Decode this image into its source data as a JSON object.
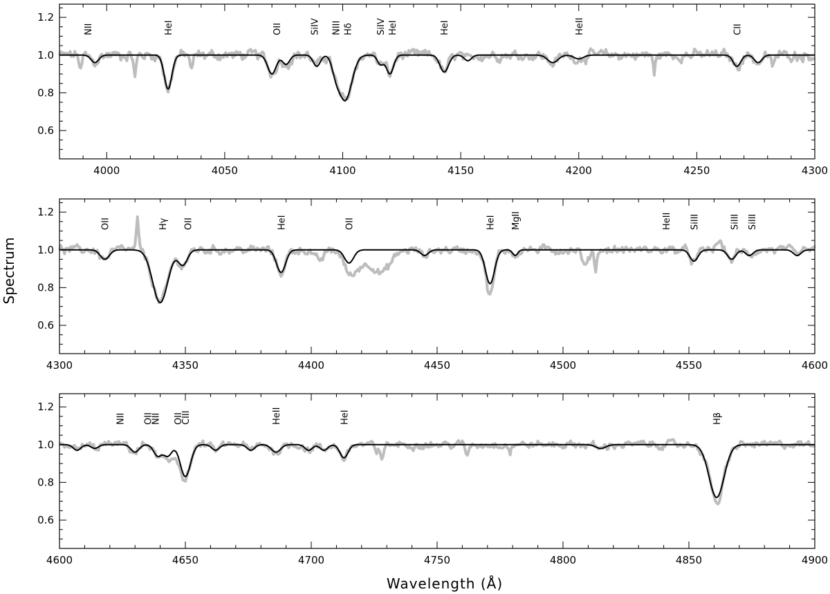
{
  "chart_data": {
    "type": "line",
    "ylabel": "Spectrum",
    "xlabel": "Wavelength (Å)",
    "ylim": [
      0.45,
      1.27
    ],
    "yticks": [
      "0.6",
      "0.8",
      "1.0",
      "1.2"
    ],
    "grid": false,
    "colors": {
      "observed": "#bdbdbd",
      "model": "#000000"
    },
    "panels": [
      {
        "xlim": [
          3980,
          4300
        ],
        "xticks": [
          "4000",
          "4050",
          "4100",
          "4150",
          "4200",
          "4250",
          "4300"
        ],
        "continuum_noise": 0.025,
        "lines": [
          {
            "wl": 3995,
            "depth": 0.04,
            "width": 1.6
          },
          {
            "wl": 4026,
            "depth": 0.18,
            "width": 1.6
          },
          {
            "wl": 4070,
            "depth": 0.1,
            "width": 1.8
          },
          {
            "wl": 4076,
            "depth": 0.05,
            "width": 1.5
          },
          {
            "wl": 4089,
            "depth": 0.06,
            "width": 1.5
          },
          {
            "wl": 4097,
            "depth": 0.06,
            "width": 1.5
          },
          {
            "wl": 4101,
            "depth": 0.24,
            "width": 2.8
          },
          {
            "wl": 4116,
            "depth": 0.05,
            "width": 1.3
          },
          {
            "wl": 4120,
            "depth": 0.1,
            "width": 1.5
          },
          {
            "wl": 4143,
            "depth": 0.09,
            "width": 1.8
          },
          {
            "wl": 4153,
            "depth": 0.03,
            "width": 1.5
          },
          {
            "wl": 4189,
            "depth": 0.04,
            "width": 2.2
          },
          {
            "wl": 4200,
            "depth": 0.02,
            "width": 2.0
          },
          {
            "wl": 4267,
            "depth": 0.06,
            "width": 1.6
          },
          {
            "wl": 4276,
            "depth": 0.04,
            "width": 1.6
          }
        ],
        "extra_dips": [
          {
            "wl": 3989,
            "depth": 0.08,
            "width": 0.6
          },
          {
            "wl": 4012,
            "depth": 0.12,
            "width": 0.5
          },
          {
            "wl": 4036,
            "depth": 0.08,
            "width": 0.6
          },
          {
            "wl": 4232,
            "depth": 0.12,
            "width": 0.4
          },
          {
            "wl": 4282,
            "depth": 0.06,
            "width": 0.8
          }
        ],
        "labels": [
          {
            "text": "NII",
            "wl": 3992
          },
          {
            "text": "HeI",
            "wl": 4026
          },
          {
            "text": "OII",
            "wl": 4072
          },
          {
            "text": "SiIV",
            "wl": 4088
          },
          {
            "text": "NIII",
            "wl": 4097
          },
          {
            "text": "Hδ",
            "wl": 4102
          },
          {
            "text": "SiIV",
            "wl": 4116
          },
          {
            "text": "HeI",
            "wl": 4121
          },
          {
            "text": "HeI",
            "wl": 4143
          },
          {
            "text": "HeII",
            "wl": 4200
          },
          {
            "text": "CII",
            "wl": 4267
          }
        ]
      },
      {
        "xlim": [
          4300,
          4600
        ],
        "xticks": [
          "4300",
          "4350",
          "4400",
          "4450",
          "4500",
          "4550",
          "4600"
        ],
        "continuum_noise": 0.02,
        "lines": [
          {
            "wl": 4318,
            "depth": 0.05,
            "width": 1.8
          },
          {
            "wl": 4340,
            "depth": 0.28,
            "width": 3.0
          },
          {
            "wl": 4349,
            "depth": 0.08,
            "width": 1.8
          },
          {
            "wl": 4388,
            "depth": 0.12,
            "width": 1.8
          },
          {
            "wl": 4415,
            "depth": 0.07,
            "width": 1.8
          },
          {
            "wl": 4445,
            "depth": 0.03,
            "width": 1.5
          },
          {
            "wl": 4471,
            "depth": 0.18,
            "width": 1.8
          },
          {
            "wl": 4481,
            "depth": 0.03,
            "width": 1.0
          },
          {
            "wl": 4552,
            "depth": 0.06,
            "width": 1.6
          },
          {
            "wl": 4567,
            "depth": 0.05,
            "width": 1.6
          },
          {
            "wl": 4574,
            "depth": 0.03,
            "width": 1.5
          },
          {
            "wl": 4593,
            "depth": 0.03,
            "width": 1.5
          }
        ],
        "extra_dips": [
          {
            "wl": 4331,
            "depth": -0.18,
            "width": 0.4
          },
          {
            "wl": 4403,
            "depth": 0.06,
            "width": 1.8
          },
          {
            "wl": 4418,
            "depth": 0.09,
            "width": 3.5
          },
          {
            "wl": 4428,
            "depth": 0.12,
            "width": 3.5
          },
          {
            "wl": 4471,
            "depth": 0.06,
            "width": 1.2
          },
          {
            "wl": 4509,
            "depth": 0.09,
            "width": 1.2
          },
          {
            "wl": 4513,
            "depth": 0.1,
            "width": 0.5
          },
          {
            "wl": 4562,
            "depth": -0.04,
            "width": 1.2
          }
        ],
        "labels": [
          {
            "text": "OII",
            "wl": 4318
          },
          {
            "text": "Hγ",
            "wl": 4341
          },
          {
            "text": "OII",
            "wl": 4351
          },
          {
            "text": "HeI",
            "wl": 4388
          },
          {
            "text": "OII",
            "wl": 4415
          },
          {
            "text": "HeI",
            "wl": 4471
          },
          {
            "text": "MgII",
            "wl": 4481
          },
          {
            "text": "HeII",
            "wl": 4541
          },
          {
            "text": "SiIII",
            "wl": 4552
          },
          {
            "text": "SiIII",
            "wl": 4568
          },
          {
            "text": "SiIII",
            "wl": 4575
          }
        ]
      },
      {
        "xlim": [
          4600,
          4900
        ],
        "xticks": [
          "4600",
          "4650",
          "4700",
          "4750",
          "4800",
          "4850",
          "4900"
        ],
        "continuum_noise": 0.018,
        "lines": [
          {
            "wl": 4607,
            "depth": 0.03,
            "width": 1.5
          },
          {
            "wl": 4614,
            "depth": 0.02,
            "width": 1.5
          },
          {
            "wl": 4630,
            "depth": 0.04,
            "width": 1.6
          },
          {
            "wl": 4639,
            "depth": 0.06,
            "width": 1.6
          },
          {
            "wl": 4643,
            "depth": 0.06,
            "width": 1.6
          },
          {
            "wl": 4650,
            "depth": 0.17,
            "width": 2.0
          },
          {
            "wl": 4662,
            "depth": 0.03,
            "width": 1.5
          },
          {
            "wl": 4676,
            "depth": 0.03,
            "width": 1.5
          },
          {
            "wl": 4686,
            "depth": 0.04,
            "width": 1.8
          },
          {
            "wl": 4699,
            "depth": 0.03,
            "width": 1.5
          },
          {
            "wl": 4705,
            "depth": 0.03,
            "width": 1.5
          },
          {
            "wl": 4713,
            "depth": 0.07,
            "width": 1.6
          },
          {
            "wl": 4815,
            "depth": 0.02,
            "width": 2.0
          },
          {
            "wl": 4861,
            "depth": 0.28,
            "width": 3.0
          }
        ],
        "extra_dips": [
          {
            "wl": 4645,
            "depth": 0.04,
            "width": 3.0
          },
          {
            "wl": 4726,
            "depth": 0.06,
            "width": 0.6
          },
          {
            "wl": 4728,
            "depth": 0.07,
            "width": 0.6
          },
          {
            "wl": 4762,
            "depth": 0.06,
            "width": 0.6
          },
          {
            "wl": 4779,
            "depth": 0.04,
            "width": 0.5
          },
          {
            "wl": 4862,
            "depth": 0.05,
            "width": 0.8
          }
        ],
        "labels": [
          {
            "text": "NII",
            "wl": 4624
          },
          {
            "text": "OII",
            "wl": 4635
          },
          {
            "text": "NII",
            "wl": 4638
          },
          {
            "text": "OII",
            "wl": 4647
          },
          {
            "text": "CIII",
            "wl": 4650
          },
          {
            "text": "HeII",
            "wl": 4686
          },
          {
            "text": "HeI",
            "wl": 4713
          },
          {
            "text": "Hβ",
            "wl": 4861
          }
        ]
      }
    ]
  }
}
